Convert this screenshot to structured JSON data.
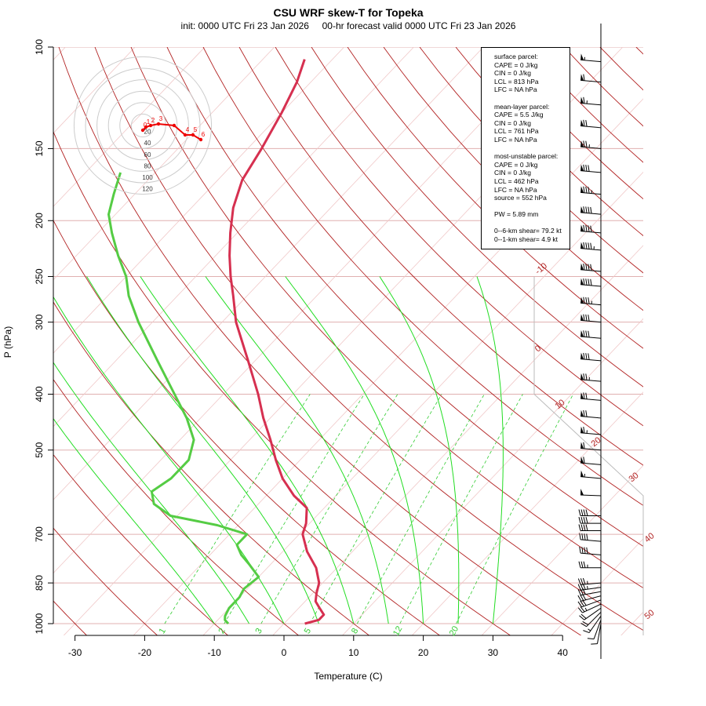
{
  "chart_data": {
    "type": "line",
    "title": "CSU WRF skew-T for Topeka",
    "subtitle": "init: 0000 UTC Fri 23 Jan 2026     00-hr forecast valid 0000 UTC Fri 23 Jan 2026",
    "xlabel": "Temperature (C)",
    "ylabel": "P (hPa)",
    "x_ticks": [
      "-30",
      "-20",
      "-10",
      "0",
      "10",
      "20",
      "30",
      "40"
    ],
    "y_ticks": [
      "100",
      "150",
      "200",
      "250",
      "300",
      "400",
      "500",
      "700",
      "850",
      "1000"
    ],
    "xlim": [
      -33,
      45
    ],
    "ylim": [
      1050,
      100
    ],
    "isotherm_labels": [
      "-10",
      "0",
      "10",
      "20",
      "30",
      "40",
      "50"
    ],
    "mixing_ratio_labels": [
      "1",
      "2",
      "3",
      "5",
      "8",
      "12",
      "20"
    ],
    "series": [
      {
        "name": "temperature",
        "color": "#d63050",
        "pressure": [
          1000,
          985,
          965,
          940,
          915,
          885,
          850,
          800,
          750,
          700,
          670,
          630,
          600,
          560,
          520,
          480,
          440,
          400,
          350,
          300,
          270,
          250,
          230,
          210,
          190,
          170,
          150,
          130,
          115,
          105
        ],
        "temperature": [
          3.0,
          4.5,
          4.5,
          3.0,
          1.5,
          0.5,
          -0.5,
          -3.0,
          -6.5,
          -9.5,
          -10.5,
          -12.5,
          -16.0,
          -20.0,
          -23.5,
          -27.0,
          -31.0,
          -35.0,
          -41.0,
          -48.0,
          -52.0,
          -55.0,
          -58.0,
          -61.0,
          -64.0,
          -66.5,
          -68.0,
          -70.0,
          -72.0,
          -74.0
        ]
      },
      {
        "name": "dewpoint",
        "color": "#55cc44",
        "pressure": [
          1000,
          985,
          970,
          940,
          900,
          870,
          830,
          790,
          760,
          730,
          700,
          675,
          650,
          620,
          590,
          560,
          520,
          480,
          440,
          400,
          350,
          300,
          270,
          250,
          230,
          210,
          195,
          180,
          165
        ],
        "temperature": [
          -8.0,
          -9.0,
          -9.5,
          -10.0,
          -10.0,
          -10.5,
          -10.0,
          -13.0,
          -15.5,
          -17.5,
          -17.5,
          -23.0,
          -31.0,
          -35.0,
          -37.0,
          -36.0,
          -36.0,
          -38.0,
          -42.0,
          -47.0,
          -54.0,
          -62.0,
          -67.0,
          -70.0,
          -74.0,
          -78.0,
          -81.0,
          -83.0,
          -85.0
        ]
      }
    ],
    "hodograph": {
      "ring_labels": [
        "20",
        "40",
        "60",
        "80",
        "100",
        "120"
      ],
      "point_labels": [
        "0",
        "1",
        "2",
        "3",
        "4",
        "5",
        "6"
      ],
      "u": [
        0,
        2,
        5,
        10,
        20,
        27,
        32,
        37
      ],
      "v": [
        0,
        2,
        3,
        4,
        3,
        -3,
        -3,
        -6
      ]
    },
    "wind_barbs": {
      "pressure": [
        1000,
        985,
        970,
        955,
        940,
        925,
        910,
        895,
        880,
        865,
        850,
        800,
        760,
        720,
        690,
        670,
        650,
        600,
        560,
        530,
        500,
        470,
        440,
        410,
        380,
        350,
        320,
        300,
        280,
        260,
        245,
        225,
        210,
        195,
        180,
        165,
        150,
        138,
        126,
        115,
        106
      ],
      "speed_kt": [
        10,
        12,
        15,
        18,
        22,
        25,
        28,
        30,
        32,
        34,
        36,
        35,
        40,
        40,
        40,
        40,
        42,
        50,
        55,
        60,
        62,
        65,
        70,
        72,
        75,
        78,
        80,
        82,
        85,
        88,
        90,
        95,
        92,
        90,
        85,
        80,
        75,
        70,
        65,
        60,
        55
      ],
      "direction_deg": [
        190,
        200,
        215,
        225,
        235,
        245,
        250,
        255,
        260,
        262,
        265,
        270,
        275,
        275,
        270,
        270,
        270,
        272,
        275,
        275,
        275,
        275,
        275,
        275,
        275,
        275,
        275,
        275,
        275,
        275,
        275,
        275,
        275,
        275,
        275,
        275,
        275,
        275,
        275,
        275,
        275
      ]
    }
  },
  "stats": {
    "lines": [
      "surface parcel:",
      "CAPE = 0 J/kg",
      "CIN = 0 J/kg",
      "LCL = 813 hPa",
      "LFC = NA hPa",
      "",
      "mean-layer parcel:",
      "CAPE = 5.5 J/kg",
      "CIN = 0 J/kg",
      "LCL = 761 hPa",
      "LFC = NA hPa",
      "",
      "most-unstable parcel:",
      "CAPE = 0 J/kg",
      "CIN = 0 J/kg",
      "LCL = 462 hPa",
      "LFC = NA hPa",
      "source = 552 hPa",
      "",
      "PW =  5.89 mm",
      "",
      "0--6-km shear= 79.2 kt",
      "0--1-km shear= 4.9 kt"
    ]
  },
  "colors": {
    "isotherm": "#b22222",
    "isobar": "#e0b0b0",
    "dry_adiabat": "#b22222",
    "moist_adiabat": "#22dd22",
    "mixing_ratio": "#33cc33",
    "skew_grid": "#f0c8c8"
  }
}
